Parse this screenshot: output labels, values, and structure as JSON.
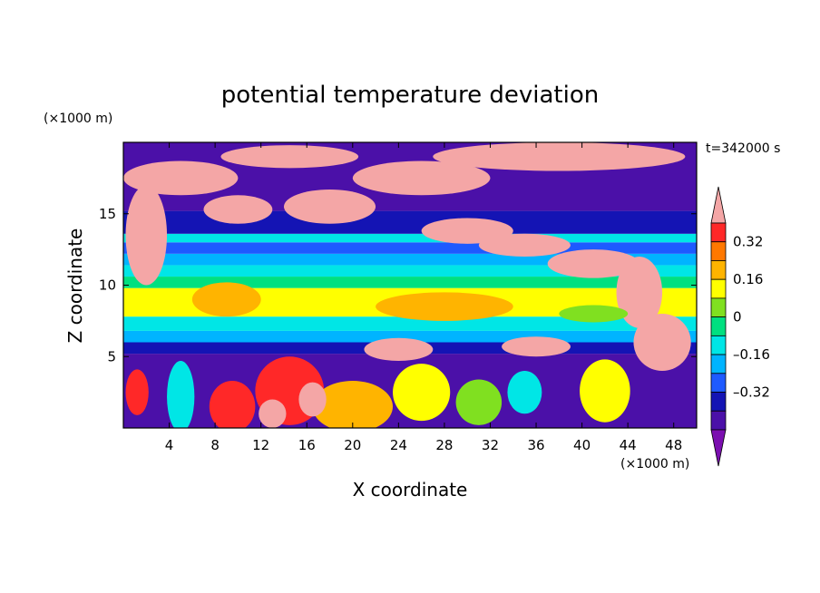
{
  "chart_data": {
    "type": "heatmap",
    "title": "potential temperature deviation",
    "xlabel": "X coordinate",
    "ylabel": "Z coordinate",
    "x_unit": "(×1000 m)",
    "y_unit": "(×1000 m)",
    "time_label": "t=342000 s",
    "xlim": [
      0,
      50
    ],
    "ylim": [
      0,
      20
    ],
    "x_ticks": [
      4,
      8,
      12,
      16,
      20,
      24,
      28,
      32,
      36,
      40,
      44,
      48
    ],
    "y_ticks": [
      5,
      10,
      15
    ],
    "colorbar": {
      "levels": [
        -0.48,
        -0.4,
        -0.32,
        -0.24,
        -0.16,
        -0.08,
        0,
        0.08,
        0.16,
        0.24,
        0.32,
        0.4
      ],
      "colors": [
        "#7b0fb0",
        "#4b10a8",
        "#1414b4",
        "#1e5aff",
        "#00b4ff",
        "#00e6e6",
        "#00e080",
        "#80e020",
        "#ffff00",
        "#ffb400",
        "#ff7800",
        "#ff2828",
        "#f4a6a6"
      ],
      "tick_values": [
        0.32,
        0.16,
        0,
        -0.16,
        -0.32
      ],
      "tick_labels": [
        "0.32",
        "0.16",
        "0",
        "–0.16",
        "–0.32"
      ]
    },
    "bands": [
      {
        "z0": 0,
        "z1": 5.2,
        "value": -0.46
      },
      {
        "z0": 5.2,
        "z1": 6.0,
        "value": -0.36
      },
      {
        "z0": 6.0,
        "z1": 6.8,
        "value": -0.2
      },
      {
        "z0": 6.8,
        "z1": 7.8,
        "value": -0.1
      },
      {
        "z0": 7.8,
        "z1": 9.8,
        "value": 0.1
      },
      {
        "z0": 9.8,
        "z1": 10.6,
        "value": -0.04
      },
      {
        "z0": 10.6,
        "z1": 11.4,
        "value": -0.12
      },
      {
        "z0": 11.4,
        "z1": 12.2,
        "value": -0.2
      },
      {
        "z0": 12.2,
        "z1": 13.0,
        "value": -0.28
      },
      {
        "z0": 13.0,
        "z1": 13.6,
        "value": -0.12
      },
      {
        "z0": 13.6,
        "z1": 15.2,
        "value": -0.36
      },
      {
        "z0": 15.2,
        "z1": 20.0,
        "value": -0.46
      }
    ],
    "warm_regions": [
      {
        "x": 2,
        "z": 13.5,
        "rx": 1.8,
        "rz": 3.5,
        "value": 0.45
      },
      {
        "x": 5,
        "z": 17.5,
        "rx": 5,
        "rz": 1.2,
        "value": 0.45
      },
      {
        "x": 10,
        "z": 15.3,
        "rx": 3,
        "rz": 1,
        "value": 0.45
      },
      {
        "x": 18,
        "z": 15.5,
        "rx": 4,
        "rz": 1.2,
        "value": 0.45
      },
      {
        "x": 14.5,
        "z": 19.0,
        "rx": 6,
        "rz": 0.8,
        "value": 0.45
      },
      {
        "x": 26,
        "z": 17.5,
        "rx": 6,
        "rz": 1.2,
        "value": 0.45
      },
      {
        "x": 38,
        "z": 19,
        "rx": 11,
        "rz": 1.0,
        "value": 0.45
      },
      {
        "x": 30,
        "z": 13.8,
        "rx": 4,
        "rz": 0.9,
        "value": 0.45
      },
      {
        "x": 35,
        "z": 12.8,
        "rx": 4,
        "rz": 0.8,
        "value": 0.45
      },
      {
        "x": 41,
        "z": 11.5,
        "rx": 4,
        "rz": 1.0,
        "value": 0.45
      },
      {
        "x": 45,
        "z": 9.5,
        "rx": 2,
        "rz": 2.5,
        "value": 0.45
      },
      {
        "x": 47,
        "z": 6.0,
        "rx": 2.5,
        "rz": 2.0,
        "value": 0.45
      },
      {
        "x": 24,
        "z": 5.5,
        "rx": 3,
        "rz": 0.8,
        "value": 0.45
      },
      {
        "x": 36,
        "z": 5.7,
        "rx": 3,
        "rz": 0.7,
        "value": 0.45
      },
      {
        "x": 9,
        "z": 9.0,
        "rx": 3,
        "rz": 1.2,
        "value": 0.16
      },
      {
        "x": 28,
        "z": 8.5,
        "rx": 6,
        "rz": 1.0,
        "value": 0.16
      },
      {
        "x": 41,
        "z": 8.0,
        "rx": 3,
        "rz": 0.6,
        "value": 0.0
      }
    ],
    "lower_plumes": [
      {
        "x": 9.5,
        "z": 1.5,
        "rx": 2.0,
        "rz": 1.8,
        "value": 0.36
      },
      {
        "x": 14.5,
        "z": 2.6,
        "rx": 3.0,
        "rz": 2.4,
        "value": 0.36
      },
      {
        "x": 20,
        "z": 1.5,
        "rx": 3.5,
        "rz": 1.8,
        "value": 0.2
      },
      {
        "x": 26,
        "z": 2.5,
        "rx": 2.5,
        "rz": 2.0,
        "value": 0.1
      },
      {
        "x": 31,
        "z": 1.8,
        "rx": 2.0,
        "rz": 1.6,
        "value": 0.0
      },
      {
        "x": 35,
        "z": 2.5,
        "rx": 1.5,
        "rz": 1.5,
        "value": -0.12
      },
      {
        "x": 42,
        "z": 2.6,
        "rx": 2.2,
        "rz": 2.2,
        "value": 0.1
      },
      {
        "x": 5,
        "z": 2.2,
        "rx": 1.2,
        "rz": 2.5,
        "value": -0.1
      },
      {
        "x": 13,
        "z": 1.0,
        "rx": 1.2,
        "rz": 1.0,
        "value": 0.45
      },
      {
        "x": 16.5,
        "z": 2.0,
        "rx": 1.2,
        "rz": 1.2,
        "value": 0.45
      },
      {
        "x": 1.2,
        "z": 2.5,
        "rx": 1.0,
        "rz": 1.6,
        "value": 0.36
      }
    ]
  }
}
